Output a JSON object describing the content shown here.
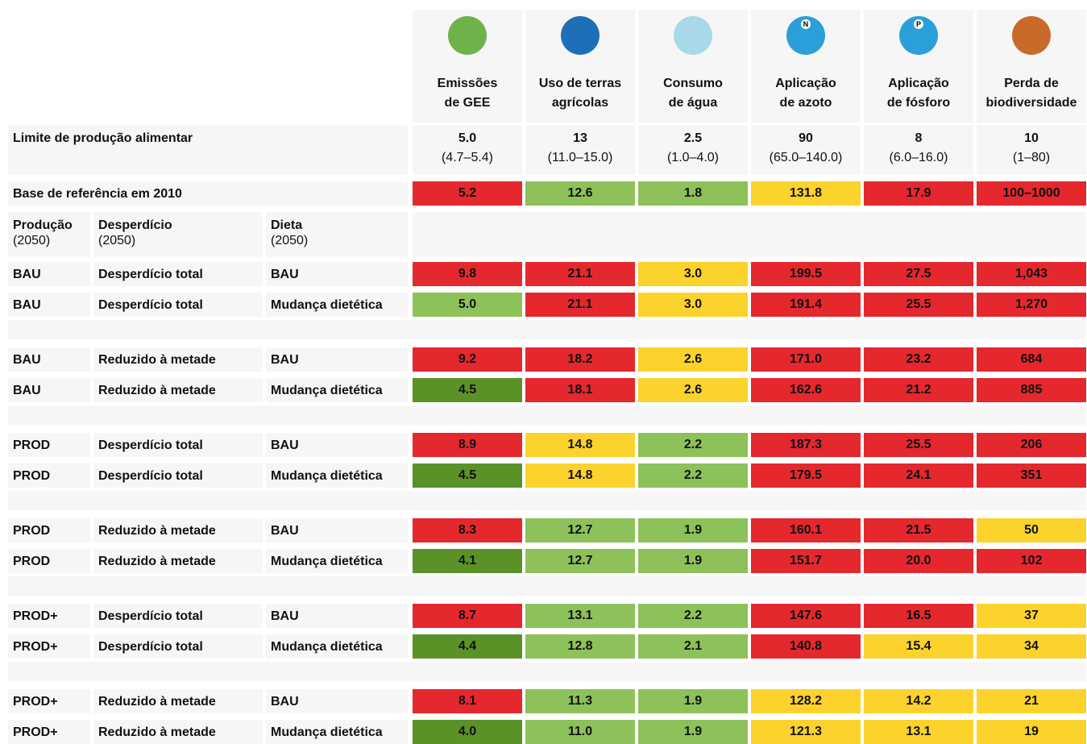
{
  "header": {
    "columns": [
      {
        "lines": [
          "Emissões",
          "de GEE"
        ]
      },
      {
        "lines": [
          "Uso de terras",
          "agrícolas"
        ]
      },
      {
        "lines": [
          "Consumo",
          "de água"
        ]
      },
      {
        "lines": [
          "Aplicação",
          "de azoto"
        ],
        "icon_label": "N"
      },
      {
        "lines": [
          "Aplicação",
          "de fósforo"
        ],
        "icon_label": "P"
      },
      {
        "lines": [
          "Perda de",
          "biodiversidade"
        ]
      }
    ]
  },
  "limit": {
    "label": "Limite de produção alimentar",
    "values": [
      "5.0",
      "13",
      "2.5",
      "90",
      "8",
      "10"
    ],
    "ranges": [
      "(4.7–5.4)",
      "(11.0–15.0)",
      "(1.0–4.0)",
      "(65.0–140.0)",
      "(6.0–16.0)",
      "(1–80)"
    ]
  },
  "baseline": {
    "label": "Base de referência em 2010",
    "values": [
      "5.2",
      "12.6",
      "1.8",
      "131.8",
      "17.9",
      "100–1000"
    ],
    "colors": [
      "#e4282e",
      "#8dc15a",
      "#8dc15a",
      "#fcd22d",
      "#e4282e",
      "#e4282e"
    ]
  },
  "scenario_headers": [
    {
      "title": "Produção",
      "sub": "(2050)"
    },
    {
      "title": "Desperdício",
      "sub": "(2050)"
    },
    {
      "title": "Dieta",
      "sub": "(2050)"
    }
  ],
  "groups": [
    [
      {
        "production": "BAU",
        "waste": "Desperdício total",
        "diet": "BAU",
        "values": [
          "9.8",
          "21.1",
          "3.0",
          "199.5",
          "27.5",
          "1,043"
        ],
        "colors": [
          "#e4282e",
          "#e4282e",
          "#fcd22d",
          "#e4282e",
          "#e4282e",
          "#e4282e"
        ]
      },
      {
        "production": "BAU",
        "waste": "Desperdício total",
        "diet": "Mudança dietética",
        "values": [
          "5.0",
          "21.1",
          "3.0",
          "191.4",
          "25.5",
          "1,270"
        ],
        "colors": [
          "#8dc15a",
          "#e4282e",
          "#fcd22d",
          "#e4282e",
          "#e4282e",
          "#e4282e"
        ]
      }
    ],
    [
      {
        "production": "BAU",
        "waste": "Reduzido à metade",
        "diet": "BAU",
        "values": [
          "9.2",
          "18.2",
          "2.6",
          "171.0",
          "23.2",
          "684"
        ],
        "colors": [
          "#e4282e",
          "#e4282e",
          "#fcd22d",
          "#e4282e",
          "#e4282e",
          "#e4282e"
        ]
      },
      {
        "production": "BAU",
        "waste": "Reduzido à metade",
        "diet": "Mudança dietética",
        "values": [
          "4.5",
          "18.1",
          "2.6",
          "162.6",
          "21.2",
          "885"
        ],
        "colors": [
          "#5a9228",
          "#e4282e",
          "#fcd22d",
          "#e4282e",
          "#e4282e",
          "#e4282e"
        ]
      }
    ],
    [
      {
        "production": "PROD",
        "waste": "Desperdício total",
        "diet": "BAU",
        "values": [
          "8.9",
          "14.8",
          "2.2",
          "187.3",
          "25.5",
          "206"
        ],
        "colors": [
          "#e4282e",
          "#fcd22d",
          "#8dc15a",
          "#e4282e",
          "#e4282e",
          "#e4282e"
        ]
      },
      {
        "production": "PROD",
        "waste": "Desperdício total",
        "diet": "Mudança dietética",
        "values": [
          "4.5",
          "14.8",
          "2.2",
          "179.5",
          "24.1",
          "351"
        ],
        "colors": [
          "#5a9228",
          "#fcd22d",
          "#8dc15a",
          "#e4282e",
          "#e4282e",
          "#e4282e"
        ]
      }
    ],
    [
      {
        "production": "PROD",
        "waste": "Reduzido à metade",
        "diet": "BAU",
        "values": [
          "8.3",
          "12.7",
          "1.9",
          "160.1",
          "21.5",
          "50"
        ],
        "colors": [
          "#e4282e",
          "#8dc15a",
          "#8dc15a",
          "#e4282e",
          "#e4282e",
          "#fcd22d"
        ]
      },
      {
        "production": "PROD",
        "waste": "Reduzido à metade",
        "diet": "Mudança dietética",
        "values": [
          "4.1",
          "12.7",
          "1.9",
          "151.7",
          "20.0",
          "102"
        ],
        "colors": [
          "#5a9228",
          "#8dc15a",
          "#8dc15a",
          "#e4282e",
          "#e4282e",
          "#e4282e"
        ]
      }
    ],
    [
      {
        "production": "PROD+",
        "waste": "Desperdício total",
        "diet": "BAU",
        "values": [
          "8.7",
          "13.1",
          "2.2",
          "147.6",
          "16.5",
          "37"
        ],
        "colors": [
          "#e4282e",
          "#8dc15a",
          "#8dc15a",
          "#e4282e",
          "#e4282e",
          "#fcd22d"
        ]
      },
      {
        "production": "PROD+",
        "waste": "Desperdício total",
        "diet": "Mudança dietética",
        "values": [
          "4.4",
          "12.8",
          "2.1",
          "140.8",
          "15.4",
          "34"
        ],
        "colors": [
          "#5a9228",
          "#8dc15a",
          "#8dc15a",
          "#e4282e",
          "#fcd22d",
          "#fcd22d"
        ]
      }
    ],
    [
      {
        "production": "PROD+",
        "waste": "Reduzido à metade",
        "diet": "BAU",
        "values": [
          "8.1",
          "11.3",
          "1.9",
          "128.2",
          "14.2",
          "21"
        ],
        "colors": [
          "#e4282e",
          "#8dc15a",
          "#8dc15a",
          "#fcd22d",
          "#fcd22d",
          "#fcd22d"
        ]
      },
      {
        "production": "PROD+",
        "waste": "Reduzido à metade",
        "diet": "Mudança dietética",
        "values": [
          "4.0",
          "11.0",
          "1.9",
          "121.3",
          "13.1",
          "19"
        ],
        "colors": [
          "#5a9228",
          "#8dc15a",
          "#8dc15a",
          "#fcd22d",
          "#fcd22d",
          "#fcd22d"
        ]
      }
    ]
  ]
}
